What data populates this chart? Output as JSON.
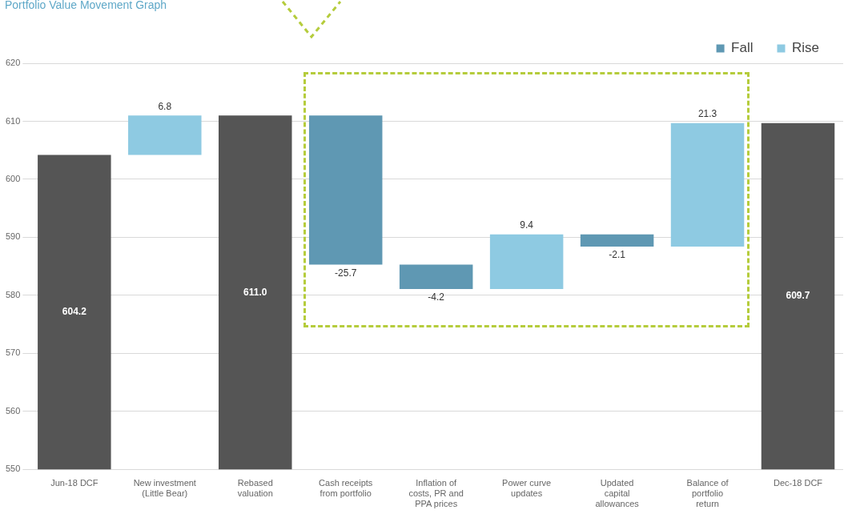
{
  "chart_data": {
    "type": "bar",
    "title": "Portfolio Value Movement Graph",
    "categories": [
      "Jun-18 DCF",
      "New investment (Little Bear)",
      "Rebased valuation",
      "Cash receipts from portfolio",
      "Inflation of costs, PR and PPA prices",
      "Power curve updates",
      "Updated capital allowances",
      "Balance of portfolio return",
      "Dec-18 DCF"
    ],
    "series": [
      {
        "color": "#555555",
        "values": [
          604.2,
          null,
          611.0,
          null,
          null,
          null,
          null,
          null,
          609.7
        ],
        "value_labels": [
          "604.2",
          null,
          "611.0",
          null,
          null,
          null,
          null,
          null,
          "609.7"
        ]
      },
      {
        "name": "Fall",
        "color": "#5f98b3",
        "base": [
          null,
          null,
          null,
          611.0,
          585.3,
          null,
          590.5,
          null,
          null
        ],
        "values": [
          null,
          null,
          null,
          -25.7,
          -4.2,
          null,
          -2.1,
          null,
          null
        ],
        "value_labels": [
          null,
          null,
          null,
          "-25.7",
          "-4.2",
          null,
          "-2.1",
          null,
          null
        ]
      },
      {
        "name": "Rise",
        "color": "#8ecae2",
        "base": [
          null,
          604.2,
          null,
          null,
          null,
          581.1,
          null,
          588.4,
          null
        ],
        "values": [
          null,
          6.8,
          null,
          null,
          null,
          9.4,
          null,
          21.3,
          null
        ],
        "value_labels": [
          null,
          "6.8",
          null,
          null,
          null,
          "9.4",
          null,
          "21.3",
          null
        ]
      }
    ],
    "ylim": [
      550,
      620
    ],
    "yticks": [
      550,
      560,
      570,
      580,
      590,
      600,
      610,
      620
    ],
    "grid": "y",
    "legend": "top right"
  }
}
